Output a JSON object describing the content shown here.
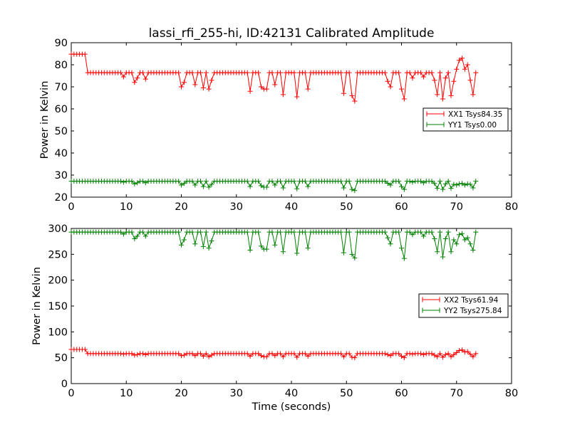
{
  "chart_data": [
    {
      "type": "line",
      "title": "lassi_rfi_255-hi, ID:42131 Calibrated Amplitude",
      "xlabel": "",
      "ylabel": "Power in Kelvin",
      "xlim": [
        0,
        80
      ],
      "ylim": [
        20,
        90
      ],
      "xticks": [
        0,
        10,
        20,
        30,
        40,
        50,
        60,
        70,
        80
      ],
      "yticks": [
        20,
        30,
        40,
        50,
        60,
        70,
        80,
        90
      ],
      "grid": false,
      "legend_position": "center-right",
      "marker": "+",
      "x": [
        0.0,
        0.5,
        1.0,
        1.5,
        2.0,
        2.5,
        3.0,
        3.5,
        4.0,
        4.5,
        5.0,
        5.5,
        6.0,
        6.5,
        7.0,
        7.5,
        8.0,
        8.5,
        9.0,
        9.5,
        10.0,
        10.5,
        11.0,
        11.5,
        12.0,
        12.5,
        13.0,
        13.5,
        14.0,
        14.5,
        15.0,
        15.5,
        16.0,
        16.5,
        17.0,
        17.5,
        18.0,
        18.5,
        19.0,
        19.5,
        20.0,
        20.5,
        21.0,
        21.5,
        22.0,
        22.5,
        23.0,
        23.5,
        24.0,
        24.5,
        25.0,
        25.5,
        26.0,
        26.5,
        27.0,
        27.5,
        28.0,
        28.5,
        29.0,
        29.5,
        30.0,
        30.5,
        31.0,
        31.5,
        32.0,
        32.5,
        33.0,
        33.5,
        34.0,
        34.5,
        35.0,
        35.5,
        36.0,
        36.5,
        37.0,
        37.5,
        38.0,
        38.5,
        39.0,
        39.5,
        40.0,
        40.5,
        41.0,
        41.5,
        42.0,
        42.5,
        43.0,
        43.5,
        44.0,
        44.5,
        45.0,
        45.5,
        46.0,
        46.5,
        47.0,
        47.5,
        48.0,
        48.5,
        49.0,
        49.5,
        50.0,
        50.5,
        51.0,
        51.5,
        52.0,
        52.5,
        53.0,
        53.5,
        54.0,
        54.5,
        55.0,
        55.5,
        56.0,
        56.5,
        57.0,
        57.5,
        58.0,
        58.5,
        59.0,
        59.5,
        60.0,
        60.5,
        61.0,
        61.5,
        62.0,
        62.5,
        63.0,
        63.5,
        64.0,
        64.5,
        65.0,
        65.5,
        66.0,
        66.5,
        67.0,
        67.5,
        68.0,
        68.5,
        69.0,
        69.5,
        70.0,
        70.5,
        71.0,
        71.5,
        72.0,
        72.5,
        73.0,
        73.5
      ],
      "series": [
        {
          "name": "XX1 Tsys84.35",
          "color": "#ff0000",
          "values": [
            84.8,
            84.8,
            84.8,
            84.8,
            84.8,
            84.8,
            76.4,
            76.4,
            76.4,
            76.4,
            76.4,
            76.4,
            76.4,
            76.4,
            76.4,
            76.4,
            76.4,
            76.4,
            76.4,
            74.5,
            76.4,
            76.4,
            76.4,
            72.0,
            74.0,
            76.4,
            76.4,
            73.5,
            76.4,
            76.4,
            76.4,
            76.4,
            76.4,
            76.4,
            76.4,
            76.4,
            76.4,
            76.4,
            76.4,
            76.4,
            70.0,
            72.0,
            76.4,
            76.4,
            76.4,
            71.0,
            76.4,
            76.4,
            69.5,
            76.4,
            69.0,
            73.0,
            76.4,
            76.4,
            76.4,
            76.4,
            76.4,
            76.4,
            76.4,
            76.4,
            76.4,
            76.4,
            76.4,
            76.4,
            76.4,
            68.0,
            76.4,
            76.4,
            76.4,
            70.0,
            69.0,
            69.0,
            76.4,
            76.4,
            71.0,
            76.4,
            76.4,
            66.5,
            76.4,
            76.4,
            76.4,
            76.4,
            65.5,
            76.4,
            76.4,
            76.4,
            69.0,
            76.4,
            76.4,
            76.4,
            76.4,
            76.4,
            76.4,
            76.4,
            76.4,
            76.4,
            76.4,
            76.4,
            76.4,
            67.0,
            76.4,
            76.4,
            66.0,
            63.5,
            76.4,
            76.4,
            76.4,
            76.4,
            76.4,
            76.4,
            76.4,
            76.4,
            76.4,
            76.4,
            76.4,
            72.5,
            70.0,
            76.4,
            76.4,
            76.4,
            69.0,
            64.5,
            76.4,
            76.4,
            74.0,
            76.4,
            76.4,
            76.4,
            74.5,
            76.4,
            76.4,
            76.4,
            73.0,
            66.5,
            76.4,
            64.5,
            74.0,
            76.4,
            66.0,
            72.5,
            78.0,
            82.0,
            83.0,
            78.0,
            80.0,
            73.0,
            66.5,
            76.4
          ]
        },
        {
          "name": "YY1 Tsys0.00",
          "color": "#008000",
          "values": [
            27.2,
            27.2,
            27.2,
            27.2,
            27.2,
            27.2,
            27.2,
            27.2,
            27.2,
            27.2,
            27.2,
            27.2,
            27.2,
            27.2,
            27.2,
            27.2,
            27.2,
            27.2,
            27.2,
            26.8,
            27.2,
            27.2,
            27.2,
            26.0,
            26.5,
            27.2,
            27.2,
            26.5,
            27.2,
            27.2,
            27.2,
            27.2,
            27.2,
            27.2,
            27.2,
            27.2,
            27.2,
            27.2,
            27.2,
            27.2,
            25.5,
            26.2,
            27.2,
            27.2,
            27.2,
            25.5,
            27.2,
            27.2,
            24.8,
            27.2,
            24.5,
            25.8,
            27.2,
            27.2,
            27.2,
            27.2,
            27.2,
            27.2,
            27.2,
            27.2,
            27.2,
            27.2,
            27.2,
            27.2,
            27.2,
            24.8,
            27.2,
            27.2,
            27.2,
            25.2,
            24.5,
            24.5,
            27.2,
            27.2,
            25.5,
            27.2,
            27.2,
            24.2,
            27.2,
            27.2,
            27.2,
            27.2,
            23.8,
            27.2,
            27.2,
            27.2,
            24.8,
            27.2,
            27.2,
            27.2,
            27.2,
            27.2,
            27.2,
            27.2,
            27.2,
            27.2,
            27.2,
            27.2,
            27.2,
            24.2,
            27.2,
            27.2,
            23.5,
            23.0,
            27.2,
            27.2,
            27.2,
            27.2,
            27.2,
            27.2,
            27.2,
            27.2,
            27.2,
            27.2,
            27.2,
            26.3,
            25.5,
            27.2,
            27.2,
            27.2,
            24.8,
            23.5,
            27.2,
            27.2,
            26.8,
            27.2,
            27.2,
            27.2,
            26.5,
            27.2,
            27.2,
            27.2,
            26.2,
            24.0,
            27.2,
            23.5,
            26.0,
            27.2,
            24.0,
            25.8,
            25.5,
            26.0,
            26.2,
            25.5,
            26.0,
            25.8,
            24.2,
            27.2
          ]
        }
      ]
    },
    {
      "type": "line",
      "title": "",
      "xlabel": "Time (seconds)",
      "ylabel": "Power in Kelvin",
      "xlim": [
        0,
        80
      ],
      "ylim": [
        0,
        300
      ],
      "xticks": [
        0,
        10,
        20,
        30,
        40,
        50,
        60,
        70,
        80
      ],
      "yticks": [
        0,
        50,
        100,
        150,
        200,
        250,
        300
      ],
      "grid": false,
      "legend_position": "center-right",
      "marker": "+",
      "x": [
        0.0,
        0.5,
        1.0,
        1.5,
        2.0,
        2.5,
        3.0,
        3.5,
        4.0,
        4.5,
        5.0,
        5.5,
        6.0,
        6.5,
        7.0,
        7.5,
        8.0,
        8.5,
        9.0,
        9.5,
        10.0,
        10.5,
        11.0,
        11.5,
        12.0,
        12.5,
        13.0,
        13.5,
        14.0,
        14.5,
        15.0,
        15.5,
        16.0,
        16.5,
        17.0,
        17.5,
        18.0,
        18.5,
        19.0,
        19.5,
        20.0,
        20.5,
        21.0,
        21.5,
        22.0,
        22.5,
        23.0,
        23.5,
        24.0,
        24.5,
        25.0,
        25.5,
        26.0,
        26.5,
        27.0,
        27.5,
        28.0,
        28.5,
        29.0,
        29.5,
        30.0,
        30.5,
        31.0,
        31.5,
        32.0,
        32.5,
        33.0,
        33.5,
        34.0,
        34.5,
        35.0,
        35.5,
        36.0,
        36.5,
        37.0,
        37.5,
        38.0,
        38.5,
        39.0,
        39.5,
        40.0,
        40.5,
        41.0,
        41.5,
        42.0,
        42.5,
        43.0,
        43.5,
        44.0,
        44.5,
        45.0,
        45.5,
        46.0,
        46.5,
        47.0,
        47.5,
        48.0,
        48.5,
        49.0,
        49.5,
        50.0,
        50.5,
        51.0,
        51.5,
        52.0,
        52.5,
        53.0,
        53.5,
        54.0,
        54.5,
        55.0,
        55.5,
        56.0,
        56.5,
        57.0,
        57.5,
        58.0,
        58.5,
        59.0,
        59.5,
        60.0,
        60.5,
        61.0,
        61.5,
        62.0,
        62.5,
        63.0,
        63.5,
        64.0,
        64.5,
        65.0,
        65.5,
        66.0,
        66.5,
        67.0,
        67.5,
        68.0,
        68.5,
        69.0,
        69.5,
        70.0,
        70.5,
        71.0,
        71.5,
        72.0,
        72.5,
        73.0,
        73.5
      ],
      "series": [
        {
          "name": "XX2 Tsys61.94",
          "color": "#ff0000",
          "values": [
            66,
            66,
            66,
            66,
            66,
            66,
            58,
            58,
            58,
            58,
            58,
            58,
            58,
            58,
            58,
            58,
            58,
            58,
            58,
            57,
            58,
            58,
            58,
            55,
            56,
            58,
            58,
            56,
            58,
            58,
            58,
            58,
            58,
            58,
            58,
            58,
            58,
            58,
            58,
            58,
            54,
            55,
            58,
            58,
            58,
            54,
            58,
            58,
            53,
            58,
            52,
            55,
            58,
            58,
            58,
            58,
            58,
            58,
            58,
            58,
            58,
            58,
            58,
            58,
            58,
            53,
            58,
            58,
            58,
            54,
            52,
            52,
            58,
            58,
            54,
            58,
            58,
            52,
            58,
            58,
            58,
            58,
            51,
            58,
            58,
            58,
            53,
            58,
            58,
            58,
            58,
            58,
            58,
            58,
            58,
            58,
            58,
            58,
            58,
            52,
            58,
            58,
            51,
            50,
            58,
            58,
            58,
            58,
            58,
            58,
            58,
            58,
            58,
            58,
            58,
            56,
            54,
            58,
            58,
            58,
            53,
            50,
            58,
            58,
            57,
            58,
            58,
            58,
            56,
            58,
            58,
            58,
            55,
            52,
            58,
            51,
            56,
            58,
            52,
            56,
            60,
            64,
            65,
            61,
            62,
            57,
            52,
            58
          ]
        },
        {
          "name": "YY2 Tsys275.84",
          "color": "#008000",
          "values": [
            293,
            293,
            293,
            293,
            293,
            293,
            293,
            293,
            293,
            293,
            293,
            293,
            293,
            293,
            293,
            293,
            293,
            293,
            293,
            289,
            293,
            293,
            293,
            280,
            285,
            293,
            293,
            285,
            293,
            293,
            293,
            293,
            293,
            293,
            293,
            293,
            293,
            293,
            293,
            293,
            268,
            278,
            293,
            293,
            293,
            270,
            293,
            293,
            265,
            293,
            262,
            276,
            293,
            293,
            293,
            293,
            293,
            293,
            293,
            293,
            293,
            293,
            293,
            293,
            293,
            258,
            293,
            293,
            293,
            266,
            260,
            260,
            293,
            293,
            268,
            293,
            293,
            255,
            293,
            293,
            293,
            293,
            252,
            293,
            293,
            293,
            262,
            293,
            293,
            293,
            293,
            293,
            293,
            293,
            293,
            293,
            293,
            293,
            293,
            253,
            293,
            293,
            250,
            243,
            293,
            293,
            293,
            293,
            293,
            293,
            293,
            293,
            293,
            293,
            293,
            282,
            270,
            293,
            293,
            293,
            262,
            242,
            293,
            293,
            288,
            293,
            293,
            293,
            285,
            293,
            293,
            293,
            280,
            255,
            293,
            245,
            280,
            293,
            255,
            278,
            270,
            288,
            290,
            278,
            282,
            270,
            258,
            293
          ]
        }
      ]
    }
  ]
}
